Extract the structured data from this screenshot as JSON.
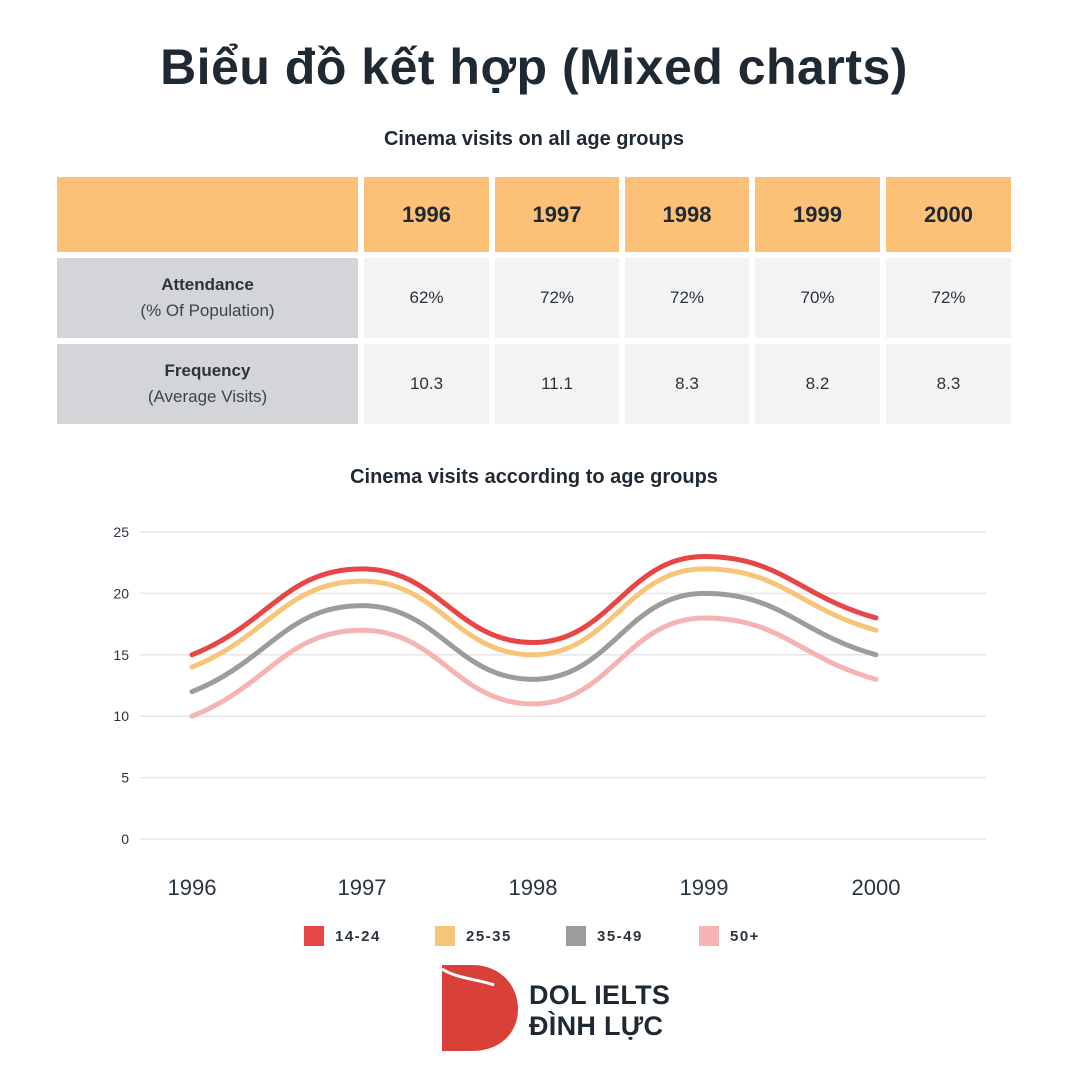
{
  "page_title": "Biểu đồ kết hợp (Mixed charts)",
  "table": {
    "title": "Cinema visits on all age groups",
    "years": [
      "1996",
      "1997",
      "1998",
      "1999",
      "2000"
    ],
    "rows": [
      {
        "label": "Attendance",
        "sublabel": "(% Of Population)",
        "values": [
          "62%",
          "72%",
          "72%",
          "70%",
          "72%"
        ]
      },
      {
        "label": "Frequency",
        "sublabel": "(Average Visits)",
        "values": [
          "10.3",
          "11.1",
          "8.3",
          "8.2",
          "8.3"
        ]
      }
    ],
    "colors": {
      "header": "#fdc077",
      "row_label": "#d4d5d9",
      "value_cell": "#f3f3f3"
    }
  },
  "chart_data": {
    "type": "line",
    "title": "Cinema visits according to age groups",
    "xlabel": "",
    "ylabel": "",
    "x": [
      "1996",
      "1997",
      "1998",
      "1999",
      "2000"
    ],
    "ylim": [
      0,
      25
    ],
    "yticks": [
      0,
      5,
      10,
      15,
      20,
      25
    ],
    "grid": true,
    "legend_position": "bottom",
    "series": [
      {
        "name": "14-24",
        "color": "#e84545",
        "values": [
          15,
          22,
          16,
          23,
          18
        ]
      },
      {
        "name": "25-35",
        "color": "#f7c57a",
        "values": [
          14,
          21,
          15,
          22,
          17
        ]
      },
      {
        "name": "35-49",
        "color": "#9c9c9c",
        "values": [
          12,
          19,
          13,
          20,
          15
        ]
      },
      {
        "name": "50+",
        "color": "#f6b3b3",
        "values": [
          10,
          17,
          11,
          18,
          13
        ]
      }
    ]
  },
  "brand": {
    "line1": "DOL IELTS",
    "line2": "ĐÌNH LỰC",
    "logo_icon": "dol-logo-icon",
    "color": "#d9403a"
  }
}
